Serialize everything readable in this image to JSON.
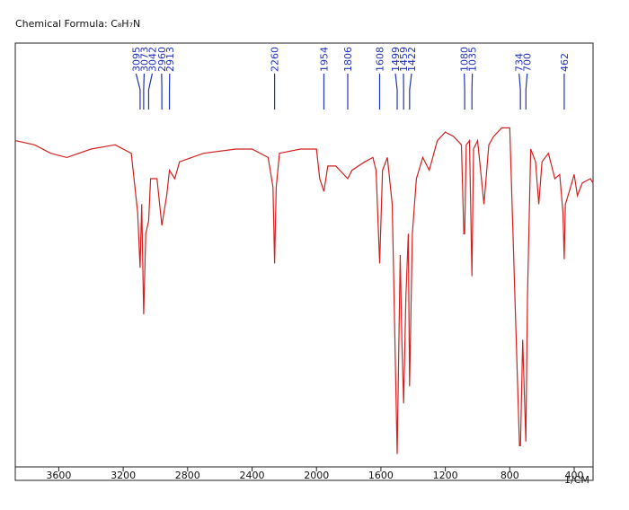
{
  "chart_data": {
    "type": "line",
    "title": "Chemical Formula: C₈H₇N",
    "x_label": "1/CM",
    "xlim": [
      3870,
      283
    ],
    "xticks": [
      3600,
      3200,
      2800,
      2400,
      2000,
      1600,
      1200,
      800,
      400
    ],
    "ylim": [
      0,
      100
    ],
    "peak_labels": [
      3095,
      3073,
      3042,
      2960,
      2913,
      2260,
      1954,
      1806,
      1608,
      1499,
      1459,
      1422,
      1080,
      1035,
      734,
      700,
      462
    ],
    "peak_label_color": "#2233bb",
    "x": [
      3870,
      3750,
      3650,
      3550,
      3400,
      3250,
      3150,
      3110,
      3095,
      3085,
      3073,
      3060,
      3042,
      3030,
      2990,
      2960,
      2930,
      2913,
      2880,
      2850,
      2700,
      2500,
      2400,
      2300,
      2270,
      2260,
      2250,
      2230,
      2100,
      2000,
      1980,
      1954,
      1930,
      1880,
      1806,
      1780,
      1700,
      1650,
      1630,
      1608,
      1590,
      1560,
      1530,
      1499,
      1480,
      1470,
      1459,
      1445,
      1430,
      1422,
      1405,
      1380,
      1340,
      1300,
      1250,
      1200,
      1150,
      1100,
      1085,
      1080,
      1070,
      1050,
      1035,
      1025,
      1000,
      960,
      930,
      900,
      850,
      800,
      760,
      740,
      734,
      720,
      700,
      690,
      670,
      640,
      620,
      600,
      560,
      520,
      490,
      470,
      462,
      455,
      430,
      400,
      380,
      350,
      300,
      283
    ],
    "series": [
      {
        "color": "#d42020",
        "values": [
          77,
          76,
          74,
          73,
          75,
          76,
          74,
          60,
          47,
          62,
          36,
          55,
          58,
          68,
          68,
          57,
          64,
          70,
          68,
          72,
          74,
          75,
          75,
          73,
          66,
          48,
          66,
          74,
          75,
          75,
          68,
          65,
          71,
          71,
          68,
          70,
          72,
          73,
          70,
          48,
          70,
          73,
          62,
          3,
          50,
          30,
          15,
          40,
          55,
          19,
          55,
          68,
          73,
          70,
          77,
          79,
          78,
          76,
          55,
          55,
          76,
          77,
          45,
          75,
          77,
          62,
          76,
          78,
          80,
          80,
          30,
          5,
          5,
          30,
          6,
          40,
          75,
          72,
          62,
          72,
          74,
          68,
          69,
          60,
          49,
          62,
          65,
          69,
          64,
          67,
          68,
          67
        ]
      }
    ]
  }
}
